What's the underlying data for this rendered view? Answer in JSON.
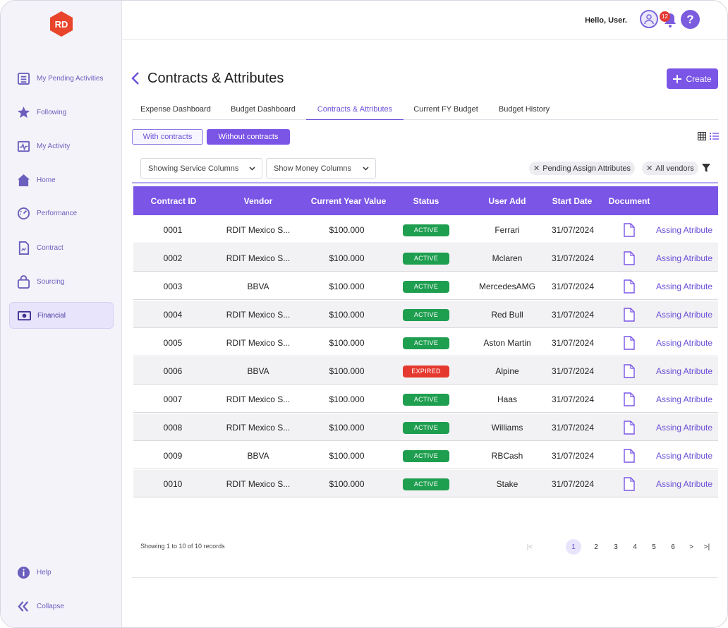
{
  "app": {
    "logo_text": "RD",
    "brand_color": "#e8452c",
    "accent": "#7b55e6"
  },
  "sidebar": {
    "items": [
      {
        "label": "My Pending Activities",
        "icon": "list-icon"
      },
      {
        "label": "Following",
        "icon": "star-icon"
      },
      {
        "label": "My Activity",
        "icon": "activity-icon"
      },
      {
        "label": "Home",
        "icon": "home-icon"
      },
      {
        "label": "Performance",
        "icon": "gauge-icon"
      },
      {
        "label": "Contract",
        "icon": "contract-icon"
      },
      {
        "label": "Sourcing",
        "icon": "bag-icon"
      },
      {
        "label": "Financial",
        "icon": "money-icon",
        "active": true
      }
    ],
    "bottom": [
      {
        "label": "Help",
        "icon": "info-icon"
      },
      {
        "label": "Collapse",
        "icon": "collapse-icon"
      }
    ]
  },
  "header": {
    "greeting": "Hello, User.",
    "notifications": "12",
    "help": "?"
  },
  "page": {
    "title": "Contracts & Attributes",
    "create_label": "Create"
  },
  "tabs": [
    {
      "label": "Expense Dashboard"
    },
    {
      "label": "Budget Dashboard"
    },
    {
      "label": "Contracts & Attributes",
      "active": true
    },
    {
      "label": "Current FY Budget"
    },
    {
      "label": "Budget History"
    }
  ],
  "toggle": {
    "with": "With contracts",
    "without": "Without contracts",
    "selected": "without"
  },
  "filters": {
    "service_select": "Showing Service Columns",
    "money_select": "Show Money Columns",
    "chips": [
      "Pending Assign Attributes",
      "All vendors"
    ]
  },
  "table": {
    "columns": [
      "Contract ID",
      "Vendor",
      "Current Year Value",
      "Status",
      "User Add",
      "Start Date",
      "Document",
      ""
    ],
    "rows": [
      {
        "id": "0001",
        "vendor": "RDIT Mexico S...",
        "value": "$100.000",
        "status": "ACTIVE",
        "user": "Ferrari",
        "date": "31/07/2024",
        "action": "Assing Atribute"
      },
      {
        "id": "0002",
        "vendor": "RDIT Mexico S...",
        "value": "$100.000",
        "status": "ACTIVE",
        "user": "Mclaren",
        "date": "31/07/2024",
        "action": "Assing Atribute"
      },
      {
        "id": "0003",
        "vendor": "BBVA",
        "value": "$100.000",
        "status": "ACTIVE",
        "user": "MercedesAMG",
        "date": "31/07/2024",
        "action": "Assing Atribute"
      },
      {
        "id": "0004",
        "vendor": "RDIT Mexico S...",
        "value": "$100.000",
        "status": "ACTIVE",
        "user": "Red Bull",
        "date": "31/07/2024",
        "action": "Assing Atribute"
      },
      {
        "id": "0005",
        "vendor": "RDIT Mexico S...",
        "value": "$100.000",
        "status": "ACTIVE",
        "user": "Aston Martin",
        "date": "31/07/2024",
        "action": "Assing Atribute"
      },
      {
        "id": "0006",
        "vendor": "BBVA",
        "value": "$100.000",
        "status": "EXPIRED",
        "user": "Alpine",
        "date": "31/07/2024",
        "action": "Assing Atribute"
      },
      {
        "id": "0007",
        "vendor": "RDIT Mexico S...",
        "value": "$100.000",
        "status": "ACTIVE",
        "user": "Haas",
        "date": "31/07/2024",
        "action": "Assing Atribute"
      },
      {
        "id": "0008",
        "vendor": "RDIT Mexico S...",
        "value": "$100.000",
        "status": "ACTIVE",
        "user": "Williams",
        "date": "31/07/2024",
        "action": "Assing Atribute"
      },
      {
        "id": "0009",
        "vendor": "BBVA",
        "value": "$100.000",
        "status": "ACTIVE",
        "user": "RBCash",
        "date": "31/07/2024",
        "action": "Assing Atribute"
      },
      {
        "id": "0010",
        "vendor": "RDIT Mexico S...",
        "value": "$100.000",
        "status": "ACTIVE",
        "user": "Stake",
        "date": "31/07/2024",
        "action": "Assing Atribute"
      }
    ],
    "status_colors": {
      "ACTIVE": "#1e9e4f",
      "EXPIRED": "#e5392f"
    }
  },
  "footer": {
    "records": "Showing 1 to 10 of 10 records",
    "pages": [
      "1",
      "2",
      "3",
      "4",
      "5",
      "6"
    ],
    "current_page": "1",
    "first": "|<",
    "next": ">",
    "last": ">|"
  }
}
